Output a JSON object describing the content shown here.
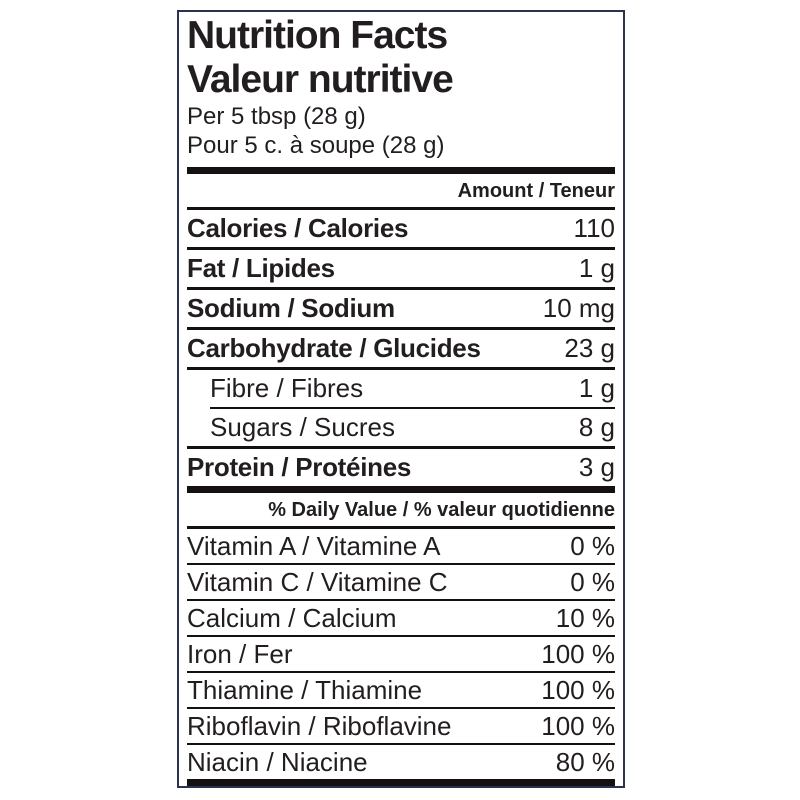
{
  "label": {
    "title_en": "Nutrition Facts",
    "title_fr": "Valeur nutritive",
    "serving_en": "Per 5 tbsp (28 g)",
    "serving_fr": "Pour 5 c. à soupe (28 g)",
    "amount_header": "Amount / Teneur",
    "daily_value_header": "% Daily Value / % valeur quotidienne",
    "nutrients": [
      {
        "name": "Calories / Calories",
        "value": "110"
      },
      {
        "name": "Fat / Lipides",
        "value": "1 g"
      },
      {
        "name": "Sodium / Sodium",
        "value": "10 mg"
      },
      {
        "name": "Carbohydrate / Glucides",
        "value": "23 g"
      },
      {
        "name": "Fibre / Fibres",
        "value": "1 g"
      },
      {
        "name": "Sugars / Sucres",
        "value": "8 g"
      },
      {
        "name": "Protein / Protéines",
        "value": "3 g"
      }
    ],
    "daily_values": [
      {
        "name": "Vitamin A / Vitamine A",
        "value": "0 %"
      },
      {
        "name": "Vitamin C / Vitamine C",
        "value": "0 %"
      },
      {
        "name": "Calcium / Calcium",
        "value": "10 %"
      },
      {
        "name": "Iron / Fer",
        "value": "100 %"
      },
      {
        "name": "Thiamine / Thiamine",
        "value": "100 %"
      },
      {
        "name": "Riboflavin / Riboflavine",
        "value": "100 %"
      },
      {
        "name": "Niacin / Niacine",
        "value": "80 %"
      }
    ],
    "colors": {
      "border": "#2b3353",
      "rule": "#151112",
      "text": "#221e1f",
      "background": "#ffffff"
    }
  }
}
